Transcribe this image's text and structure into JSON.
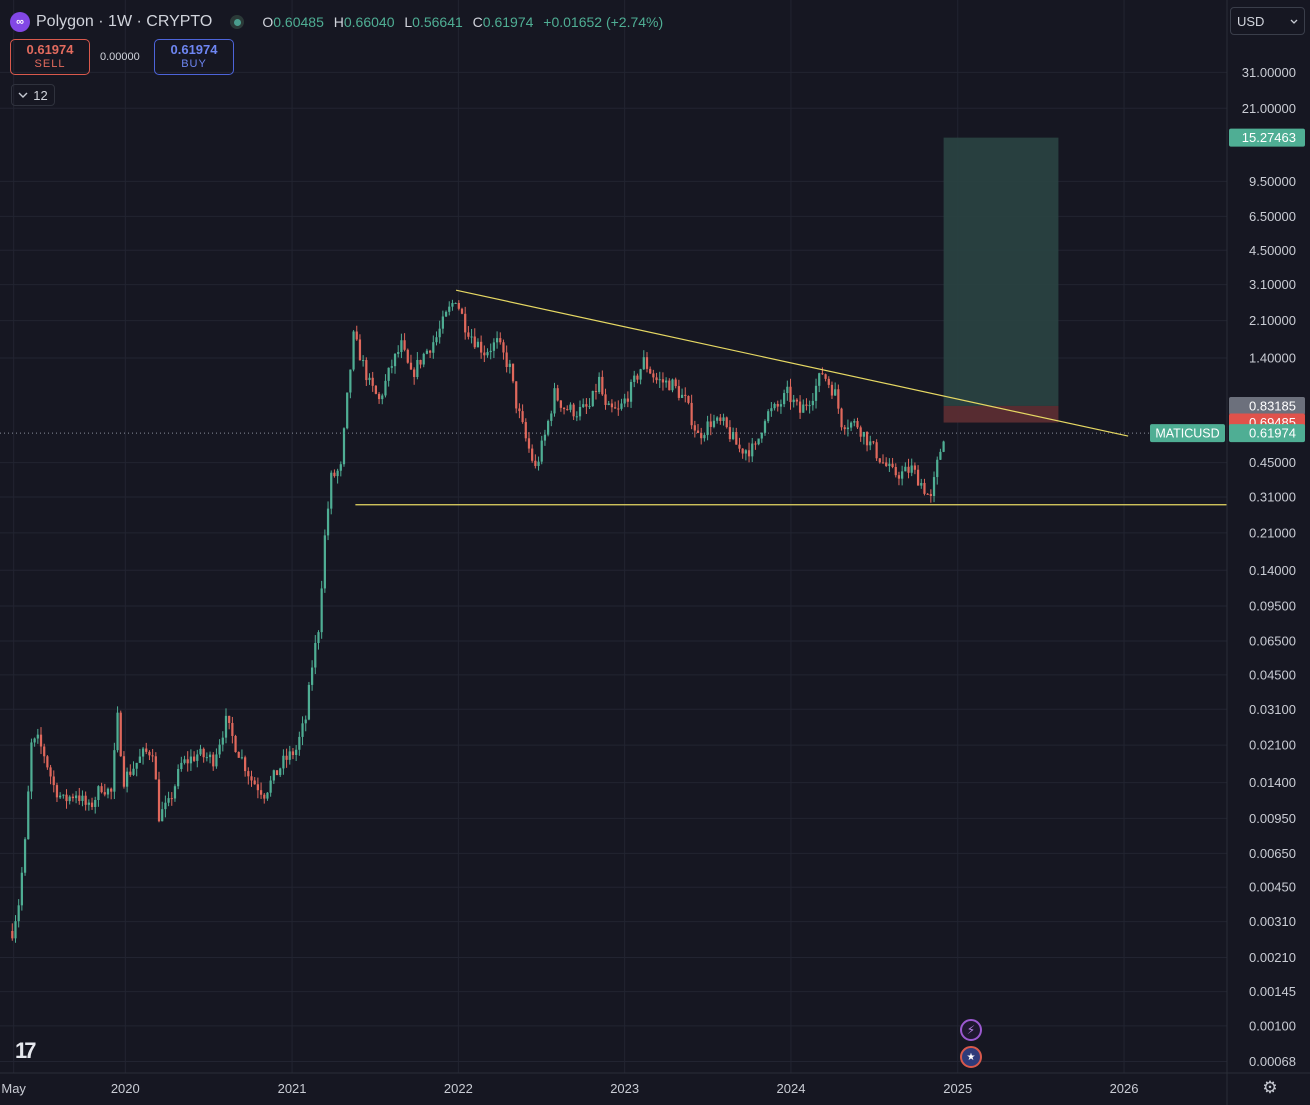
{
  "header": {
    "logo_icon": "polygon-logo-icon",
    "symbol_title": "Polygon · 1W · CRYPTO",
    "ohlc": {
      "o_label": "O",
      "o_value": "0.60485",
      "h_label": "H",
      "h_value": "0.66040",
      "l_label": "L",
      "l_value": "0.56641",
      "c_label": "C",
      "c_value": "0.61974",
      "change": "+0.01652 (+2.74%)"
    }
  },
  "trade": {
    "sell_price": "0.61974",
    "sell_label": "SELL",
    "spread": "0.00000",
    "buy_price": "0.61974",
    "buy_label": "BUY"
  },
  "interval_count": "12",
  "currency": "USD",
  "colors": {
    "background": "#161722",
    "grid": "#222431",
    "up": "#4fae94",
    "down": "#e0685c",
    "trendline": "#e6d863",
    "target_zone": "#2a4443",
    "stop_zone": "#5b2d33",
    "price_tag": "#4fae94",
    "stop_tag": "#e0524b",
    "entry_tag": "#6c707c"
  },
  "chart_data": {
    "type": "candlestick",
    "symbol": "MATICUSD",
    "interval": "1W",
    "yscale": "log",
    "ylim": [
      0.0006,
      45
    ],
    "xlim": [
      "2019-04-01",
      "2026-08-15"
    ],
    "y_ticks": [
      "31.00000",
      "21.00000",
      "9.50000",
      "6.50000",
      "4.50000",
      "3.10000",
      "2.10000",
      "1.40000",
      "0.45000",
      "0.31000",
      "0.21000",
      "0.14000",
      "0.09500",
      "0.06500",
      "0.04500",
      "0.03100",
      "0.02100",
      "0.01400",
      "0.00950",
      "0.00650",
      "0.00450",
      "0.00310",
      "0.00210",
      "0.00145",
      "0.00100",
      "0.00068"
    ],
    "x_ticks": [
      {
        "label": "May",
        "date": "2019-05-01"
      },
      {
        "label": "2020",
        "date": "2020-01-01"
      },
      {
        "label": "2021",
        "date": "2021-01-01"
      },
      {
        "label": "2022",
        "date": "2022-01-01"
      },
      {
        "label": "2023",
        "date": "2023-01-01"
      },
      {
        "label": "2024",
        "date": "2024-01-01"
      },
      {
        "label": "2025",
        "date": "2025-01-01"
      },
      {
        "label": "2026",
        "date": "2026-01-01"
      }
    ],
    "grid": true,
    "last_price": {
      "label": "MATICUSD",
      "value": "0.61974"
    },
    "price_tags": [
      {
        "value": "15.27463",
        "kind": "target"
      },
      {
        "value": "0.83185",
        "kind": "entry"
      },
      {
        "value": "0.69485",
        "kind": "stop"
      },
      {
        "value": "0.61974",
        "kind": "last"
      }
    ],
    "position_tool": {
      "start": "2024-12-01",
      "end": "2025-08-10",
      "target": 15.27463,
      "entry": 0.83185,
      "stop": 0.69485
    },
    "trendlines": [
      {
        "name": "descending-resistance",
        "from": {
          "date": "2021-12-27",
          "price": 2.92
        },
        "to": {
          "date": "2026-01-10",
          "price": 0.6
        }
      },
      {
        "name": "horizontal-support",
        "from": {
          "date": "2021-05-20",
          "price": 0.285
        },
        "to": {
          "date": "2026-08-15",
          "price": 0.285
        }
      }
    ],
    "anchors": [
      {
        "date": "2019-04-28",
        "price": 0.0028
      },
      {
        "date": "2019-05-12",
        "price": 0.0038
      },
      {
        "date": "2019-05-26",
        "price": 0.0072
      },
      {
        "date": "2019-06-09",
        "price": 0.021
      },
      {
        "date": "2019-06-23",
        "price": 0.022
      },
      {
        "date": "2019-07-07",
        "price": 0.019
      },
      {
        "date": "2019-07-28",
        "price": 0.0135
      },
      {
        "date": "2019-08-18",
        "price": 0.0115
      },
      {
        "date": "2019-09-15",
        "price": 0.0125
      },
      {
        "date": "2019-10-13",
        "price": 0.0105
      },
      {
        "date": "2019-11-10",
        "price": 0.0135
      },
      {
        "date": "2019-12-01",
        "price": 0.0125
      },
      {
        "date": "2019-12-15",
        "price": 0.028
      },
      {
        "date": "2019-12-29",
        "price": 0.0145
      },
      {
        "date": "2020-02-09",
        "price": 0.019
      },
      {
        "date": "2020-03-01",
        "price": 0.02
      },
      {
        "date": "2020-03-15",
        "price": 0.0098
      },
      {
        "date": "2020-04-05",
        "price": 0.011
      },
      {
        "date": "2020-05-03",
        "price": 0.017
      },
      {
        "date": "2020-06-07",
        "price": 0.019
      },
      {
        "date": "2020-07-12",
        "price": 0.018
      },
      {
        "date": "2020-08-09",
        "price": 0.027
      },
      {
        "date": "2020-08-30",
        "price": 0.021
      },
      {
        "date": "2020-10-04",
        "price": 0.0145
      },
      {
        "date": "2020-11-01",
        "price": 0.0125
      },
      {
        "date": "2020-12-13",
        "price": 0.0175
      },
      {
        "date": "2021-01-10",
        "price": 0.02
      },
      {
        "date": "2021-01-31",
        "price": 0.028
      },
      {
        "date": "2021-02-14",
        "price": 0.05
      },
      {
        "date": "2021-02-28",
        "price": 0.075
      },
      {
        "date": "2021-03-14",
        "price": 0.2
      },
      {
        "date": "2021-03-28",
        "price": 0.38
      },
      {
        "date": "2021-04-18",
        "price": 0.42
      },
      {
        "date": "2021-05-02",
        "price": 0.9
      },
      {
        "date": "2021-05-16",
        "price": 1.75
      },
      {
        "date": "2021-05-30",
        "price": 1.45
      },
      {
        "date": "2021-06-20",
        "price": 1.05
      },
      {
        "date": "2021-07-11",
        "price": 0.88
      },
      {
        "date": "2021-08-08",
        "price": 1.3
      },
      {
        "date": "2021-08-29",
        "price": 1.6
      },
      {
        "date": "2021-09-19",
        "price": 1.15
      },
      {
        "date": "2021-10-17",
        "price": 1.45
      },
      {
        "date": "2021-11-14",
        "price": 1.75
      },
      {
        "date": "2021-12-05",
        "price": 2.2
      },
      {
        "date": "2021-12-26",
        "price": 2.7
      },
      {
        "date": "2022-01-16",
        "price": 2.0
      },
      {
        "date": "2022-02-06",
        "price": 1.7
      },
      {
        "date": "2022-02-27",
        "price": 1.5
      },
      {
        "date": "2022-03-27",
        "price": 1.65
      },
      {
        "date": "2022-04-24",
        "price": 1.25
      },
      {
        "date": "2022-05-08",
        "price": 0.85
      },
      {
        "date": "2022-05-29",
        "price": 0.58
      },
      {
        "date": "2022-06-19",
        "price": 0.42
      },
      {
        "date": "2022-07-10",
        "price": 0.6
      },
      {
        "date": "2022-07-31",
        "price": 0.95
      },
      {
        "date": "2022-08-21",
        "price": 0.82
      },
      {
        "date": "2022-09-18",
        "price": 0.78
      },
      {
        "date": "2022-10-16",
        "price": 0.82
      },
      {
        "date": "2022-11-06",
        "price": 1.1
      },
      {
        "date": "2022-11-20",
        "price": 0.8
      },
      {
        "date": "2022-12-18",
        "price": 0.78
      },
      {
        "date": "2023-01-15",
        "price": 1.0
      },
      {
        "date": "2023-02-12",
        "price": 1.35
      },
      {
        "date": "2023-03-12",
        "price": 1.1
      },
      {
        "date": "2023-04-16",
        "price": 1.05
      },
      {
        "date": "2023-05-14",
        "price": 0.88
      },
      {
        "date": "2023-06-11",
        "price": 0.6
      },
      {
        "date": "2023-07-09",
        "price": 0.7
      },
      {
        "date": "2023-08-06",
        "price": 0.68
      },
      {
        "date": "2023-09-10",
        "price": 0.52
      },
      {
        "date": "2023-10-15",
        "price": 0.52
      },
      {
        "date": "2023-11-05",
        "price": 0.75
      },
      {
        "date": "2023-12-03",
        "price": 0.82
      },
      {
        "date": "2023-12-24",
        "price": 0.95
      },
      {
        "date": "2024-01-21",
        "price": 0.78
      },
      {
        "date": "2024-02-18",
        "price": 0.95
      },
      {
        "date": "2024-03-10",
        "price": 1.2
      },
      {
        "date": "2024-04-07",
        "price": 0.95
      },
      {
        "date": "2024-04-21",
        "price": 0.7
      },
      {
        "date": "2024-05-26",
        "price": 0.68
      },
      {
        "date": "2024-06-23",
        "price": 0.55
      },
      {
        "date": "2024-07-21",
        "price": 0.45
      },
      {
        "date": "2024-08-11",
        "price": 0.4
      },
      {
        "date": "2024-09-01",
        "price": 0.4
      },
      {
        "date": "2024-09-22",
        "price": 0.42
      },
      {
        "date": "2024-10-13",
        "price": 0.36
      },
      {
        "date": "2024-11-03",
        "price": 0.3
      },
      {
        "date": "2024-11-17",
        "price": 0.44
      },
      {
        "date": "2024-12-01",
        "price": 0.605
      }
    ]
  }
}
